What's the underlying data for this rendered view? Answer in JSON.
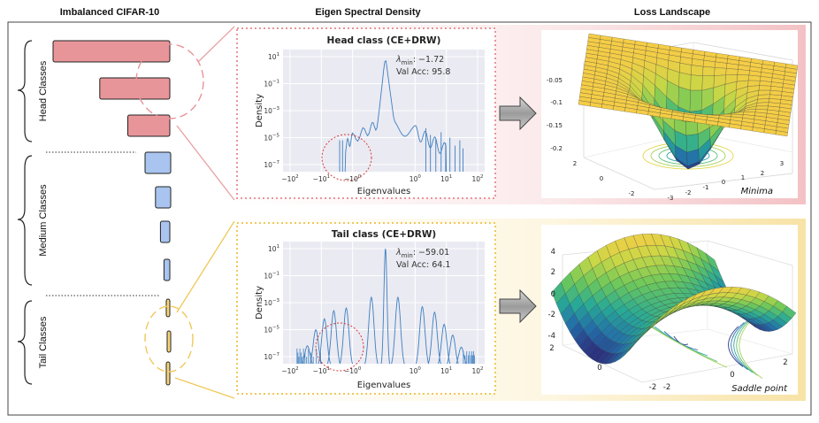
{
  "headers": {
    "col1": "Imbalanced CIFAR-10",
    "col2": "Eigen Spectral Density",
    "col3": "Loss Landscape"
  },
  "groups": {
    "head": "Head Classes",
    "medium": "Medium Classes",
    "tail": "Tail Classes"
  },
  "colors": {
    "head": "#e8959a",
    "medium": "#a8c4ef",
    "tail": "#f6d47a",
    "head_border": "#e8a0a3",
    "tail_border": "#f0c85a",
    "spectrum": "#3c7fc0",
    "plot_bg": "#eaeaf2"
  },
  "classes": {
    "relative_counts": [
      1.0,
      0.6,
      0.36,
      0.22,
      0.13,
      0.08,
      0.05,
      0.03,
      0.017,
      0.01
    ]
  },
  "esd": {
    "head": {
      "title": "Head class (CE+DRW)",
      "lambda_label": "min",
      "lambda_value": ": −1.72",
      "val_acc": "Val Acc: 95.8"
    },
    "tail": {
      "title": "Tail class (CE+DRW)",
      "lambda_label": "min",
      "lambda_value": ": −59.01",
      "val_acc": "Val Acc: 64.1"
    },
    "xlabel": "Eigenvalues",
    "ylabel": "Density",
    "x_ticks_base": [
      "−10",
      "−10",
      "−10",
      "10",
      "10",
      "10"
    ],
    "x_ticks_exp": [
      "2",
      "1",
      "0",
      "0",
      "1",
      "2"
    ],
    "y_ticks_exp": [
      "1",
      "−1",
      "−3",
      "−5",
      "−7"
    ],
    "y_tick_base": "10"
  },
  "landscape": {
    "head_label": "Minima",
    "tail_label": "Saddle point",
    "head_z_ticks": [
      "-0.05",
      "-0.1",
      "-0.15",
      "-0.2"
    ],
    "head_x_ticks": [
      "2",
      "0",
      "-2"
    ],
    "head_y_ticks": [
      "-3",
      "-2",
      "-1",
      "0",
      "1",
      "2",
      "3"
    ],
    "tail_z_ticks": [
      "4",
      "2",
      "0",
      "-2",
      "-4"
    ],
    "tail_x_ticks": [
      "2",
      "0",
      "-2"
    ],
    "tail_y_ticks": [
      "-2",
      "0",
      "2"
    ]
  }
}
